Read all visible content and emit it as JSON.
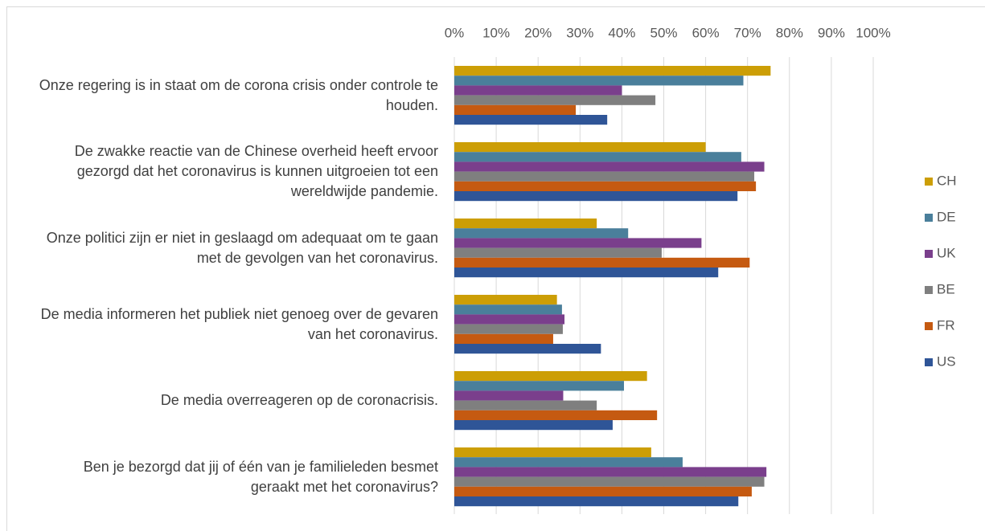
{
  "chart_data": {
    "type": "bar",
    "orientation": "horizontal",
    "categories": [
      "Onze regering is in staat om de corona crisis onder controle te houden.",
      "De zwakke reactie van de Chinese overheid heeft ervoor gezorgd dat het coronavirus is kunnen uitgroeien tot een wereldwijde pandemie.",
      "Onze politici zijn er niet in geslaagd om adequaat om te gaan met de gevolgen van het coronavirus.",
      "De media informeren het publiek niet genoeg over de gevaren van het coronavirus.",
      "De media overreageren op de coronacrisis.",
      "Ben je bezorgd dat jij of één van je familieleden besmet geraakt met het coronavirus?"
    ],
    "series": [
      {
        "name": "CH",
        "color": "#cc9e06",
        "values": [
          75.5,
          60,
          34,
          24.5,
          46,
          47
        ]
      },
      {
        "name": "DE",
        "color": "#4a7f9b",
        "values": [
          69,
          68.5,
          41.5,
          25.7,
          40.5,
          54.5
        ]
      },
      {
        "name": "UK",
        "color": "#7a3f8c",
        "values": [
          40,
          74,
          59,
          26.3,
          26,
          74.5
        ]
      },
      {
        "name": "BE",
        "color": "#7f7f7f",
        "values": [
          48,
          71.6,
          49.5,
          25.9,
          34,
          74
        ]
      },
      {
        "name": "FR",
        "color": "#c55a11",
        "values": [
          29,
          72,
          70.5,
          23.6,
          48.4,
          71
        ]
      },
      {
        "name": "US",
        "color": "#2f5597",
        "values": [
          36.5,
          67.6,
          63,
          35,
          37.8,
          67.8
        ]
      }
    ],
    "xlim": [
      0,
      100
    ],
    "xticks": [
      {
        "value": 0,
        "label": "0%"
      },
      {
        "value": 10,
        "label": "10%"
      },
      {
        "value": 20,
        "label": "20%"
      },
      {
        "value": 30,
        "label": "30%"
      },
      {
        "value": 40,
        "label": "40%"
      },
      {
        "value": 50,
        "label": "50%"
      },
      {
        "value": 60,
        "label": "60%"
      },
      {
        "value": 70,
        "label": "70%"
      },
      {
        "value": 80,
        "label": "80%"
      },
      {
        "value": 90,
        "label": "90%"
      },
      {
        "value": 100,
        "label": "100%"
      }
    ],
    "grid": true,
    "legend": "right"
  }
}
